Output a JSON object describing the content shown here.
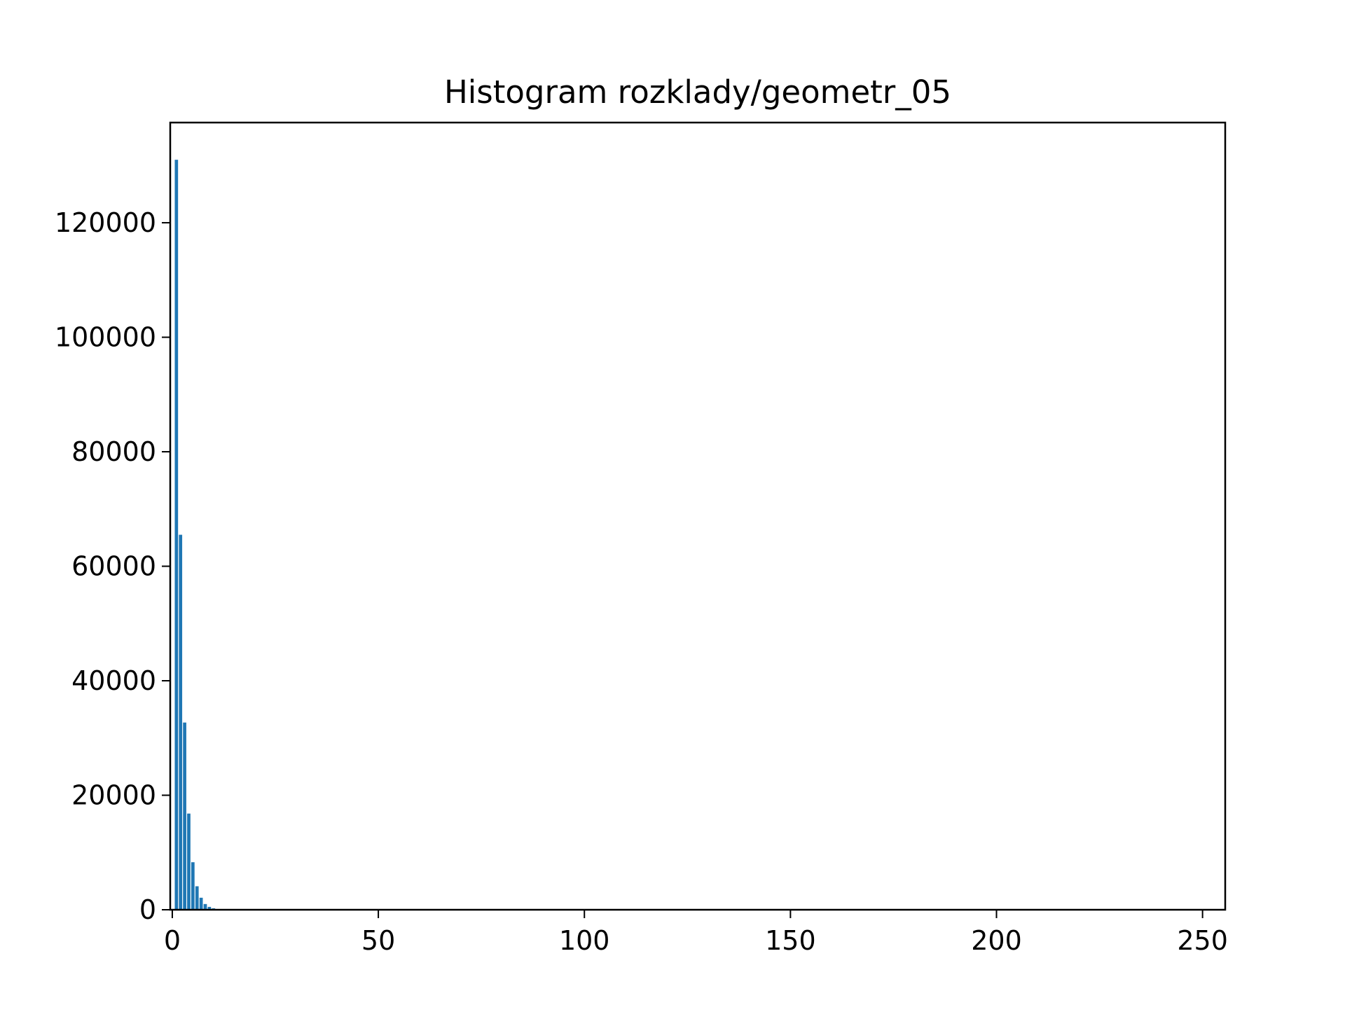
{
  "chart_data": {
    "type": "bar",
    "title": "Histogram rozklady/geometr_05",
    "xlabel": "",
    "ylabel": "",
    "xlim": [
      -0.5,
      255.5
    ],
    "ylim": [
      0,
      137500
    ],
    "x_ticks": [
      0,
      50,
      100,
      150,
      200,
      250
    ],
    "x_tick_labels": [
      "0",
      "50",
      "100",
      "150",
      "200",
      "250"
    ],
    "y_ticks": [
      0,
      20000,
      40000,
      60000,
      80000,
      100000,
      120000
    ],
    "y_tick_labels": [
      "0",
      "20000",
      "40000",
      "60000",
      "80000",
      "100000",
      "120000"
    ],
    "grid": false,
    "bar_color": "#1f77b4",
    "bin_width": 0.8,
    "x": [
      0,
      1,
      2,
      3,
      4,
      5,
      6,
      7,
      8,
      9,
      10,
      11,
      12
    ],
    "values": [
      0,
      131000,
      65500,
      32700,
      16800,
      8300,
      4100,
      2100,
      1000,
      500,
      250,
      120,
      60
    ]
  }
}
